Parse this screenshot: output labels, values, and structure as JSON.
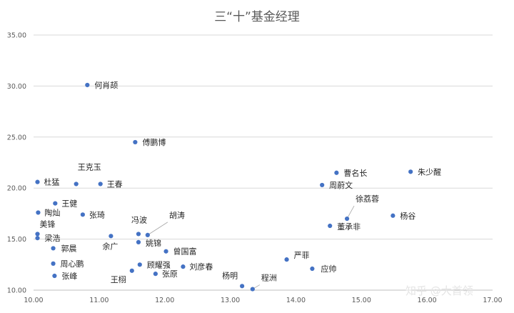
{
  "chart_data": {
    "type": "scatter",
    "title": "三“十”基金经理",
    "xlabel": "",
    "ylabel": "",
    "xlim": [
      10,
      17
    ],
    "ylim": [
      10,
      35
    ],
    "xticks": [
      "10.00",
      "11.00",
      "12.00",
      "13.00",
      "14.00",
      "15.00",
      "16.00",
      "17.00"
    ],
    "yticks": [
      "10.00",
      "15.00",
      "20.00",
      "25.00",
      "30.00",
      "35.00"
    ],
    "grid": "horizontal",
    "marker_color": "#4472c4",
    "points": [
      {
        "name": "何肖颉",
        "x": 10.82,
        "y": 30.1
      },
      {
        "name": "傅鹏博",
        "x": 11.55,
        "y": 24.5
      },
      {
        "name": "杜猛",
        "x": 10.06,
        "y": 20.6
      },
      {
        "name": "王克玉",
        "x": 10.65,
        "y": 20.4
      },
      {
        "name": "王春",
        "x": 11.02,
        "y": 20.4
      },
      {
        "name": "王健",
        "x": 10.33,
        "y": 18.5
      },
      {
        "name": "陶灿",
        "x": 10.07,
        "y": 17.6
      },
      {
        "name": "张琦",
        "x": 10.75,
        "y": 17.4
      },
      {
        "name": "美锋",
        "x": 10.06,
        "y": 15.5
      },
      {
        "name": "梁浩",
        "x": 10.06,
        "y": 15.1
      },
      {
        "name": "郭晨",
        "x": 10.3,
        "y": 14.1
      },
      {
        "name": "余广",
        "x": 11.18,
        "y": 15.3
      },
      {
        "name": "冯波",
        "x": 11.6,
        "y": 15.5
      },
      {
        "name": "胡涛",
        "x": 11.74,
        "y": 15.4
      },
      {
        "name": "姚锦",
        "x": 11.6,
        "y": 14.7
      },
      {
        "name": "曾国富",
        "x": 12.02,
        "y": 13.8
      },
      {
        "name": "周心鹏",
        "x": 10.3,
        "y": 12.6
      },
      {
        "name": "张峰",
        "x": 10.32,
        "y": 11.4
      },
      {
        "name": "顾耀强",
        "x": 11.62,
        "y": 12.5
      },
      {
        "name": "刘彦春",
        "x": 12.28,
        "y": 12.3
      },
      {
        "name": "王栩",
        "x": 11.5,
        "y": 11.9
      },
      {
        "name": "张原",
        "x": 11.86,
        "y": 11.6
      },
      {
        "name": "杨明",
        "x": 13.18,
        "y": 10.4
      },
      {
        "name": "程洲",
        "x": 13.34,
        "y": 10.1
      },
      {
        "name": "严菲",
        "x": 13.86,
        "y": 13.0
      },
      {
        "name": "应帅",
        "x": 14.25,
        "y": 12.1
      },
      {
        "name": "曹名长",
        "x": 14.62,
        "y": 21.5
      },
      {
        "name": "周蔚文",
        "x": 14.4,
        "y": 20.3
      },
      {
        "name": "朱少醒",
        "x": 15.75,
        "y": 21.6
      },
      {
        "name": "徐荔蓉",
        "x": 14.78,
        "y": 17.0
      },
      {
        "name": "杨谷",
        "x": 15.48,
        "y": 17.3
      },
      {
        "name": "董承非",
        "x": 14.52,
        "y": 16.3
      }
    ]
  },
  "watermark": "知乎 @大首领"
}
